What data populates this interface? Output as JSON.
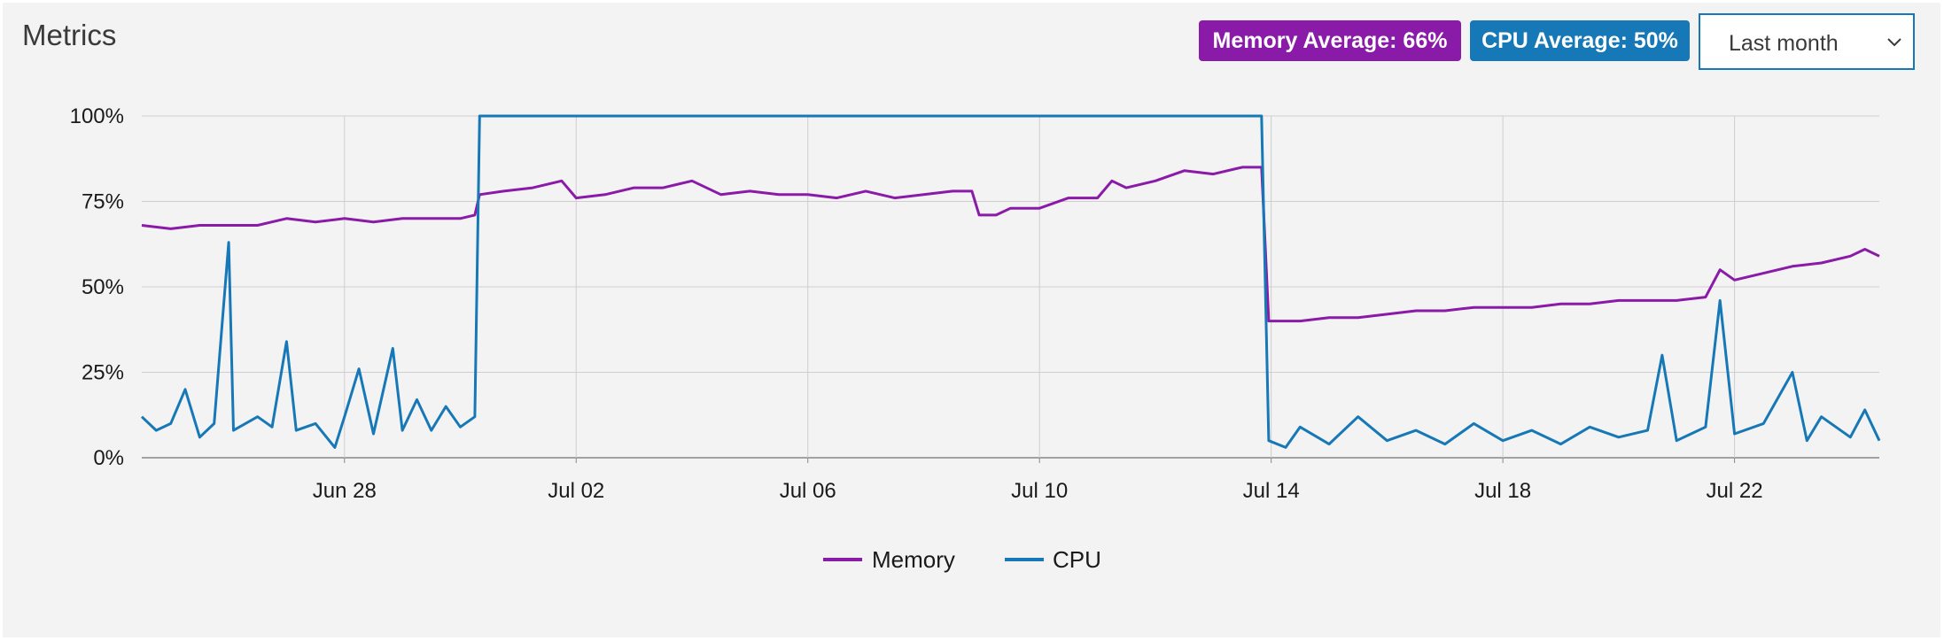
{
  "header": {
    "title": "Metrics",
    "memory_badge": "Memory Average: 66%",
    "cpu_badge": "CPU Average: 50%",
    "range_select": {
      "selected": "Last month"
    }
  },
  "colors": {
    "memory": "#8a1aa8",
    "cpu": "#1678b6",
    "grid": "#cfcdcf",
    "axis": "#888888"
  },
  "icons": {
    "range_chevron": "chevron-down-icon"
  },
  "chart_data": {
    "type": "line",
    "title": "",
    "xlabel": "",
    "ylabel": "",
    "x_range": [
      "2024-06-24T12:00",
      "2024-07-24T12:00"
    ],
    "ylim": [
      0,
      100
    ],
    "y_ticks": [
      0,
      25,
      50,
      75,
      100
    ],
    "y_tick_labels": [
      "0%",
      "25%",
      "50%",
      "75%",
      "100%"
    ],
    "x_ticks": [
      "2024-06-28",
      "2024-07-02",
      "2024-07-06",
      "2024-07-10",
      "2024-07-14",
      "2024-07-18",
      "2024-07-22"
    ],
    "x_tick_labels": [
      "Jun 28",
      "Jul 02",
      "Jul 06",
      "Jul 10",
      "Jul 14",
      "Jul 18",
      "Jul 22"
    ],
    "grid": true,
    "legend": "bottom-center",
    "series": [
      {
        "name": "Memory",
        "points": [
          [
            "2024-06-24T12:00",
            68
          ],
          [
            "2024-06-25T00:00",
            67
          ],
          [
            "2024-06-25T12:00",
            68
          ],
          [
            "2024-06-26T00:00",
            68
          ],
          [
            "2024-06-26T12:00",
            68
          ],
          [
            "2024-06-27T00:00",
            70
          ],
          [
            "2024-06-27T12:00",
            69
          ],
          [
            "2024-06-28T00:00",
            70
          ],
          [
            "2024-06-28T12:00",
            69
          ],
          [
            "2024-06-29T00:00",
            70
          ],
          [
            "2024-06-29T12:00",
            70
          ],
          [
            "2024-06-30T00:00",
            70
          ],
          [
            "2024-06-30T06:00",
            71
          ],
          [
            "2024-06-30T08:00",
            77
          ],
          [
            "2024-06-30T18:00",
            78
          ],
          [
            "2024-07-01T06:00",
            79
          ],
          [
            "2024-07-01T18:00",
            81
          ],
          [
            "2024-07-02T00:00",
            76
          ],
          [
            "2024-07-02T12:00",
            77
          ],
          [
            "2024-07-03T00:00",
            79
          ],
          [
            "2024-07-03T12:00",
            79
          ],
          [
            "2024-07-04T00:00",
            81
          ],
          [
            "2024-07-04T12:00",
            77
          ],
          [
            "2024-07-05T00:00",
            78
          ],
          [
            "2024-07-05T12:00",
            77
          ],
          [
            "2024-07-06T00:00",
            77
          ],
          [
            "2024-07-06T12:00",
            76
          ],
          [
            "2024-07-07T00:00",
            78
          ],
          [
            "2024-07-07T12:00",
            76
          ],
          [
            "2024-07-08T00:00",
            77
          ],
          [
            "2024-07-08T12:00",
            78
          ],
          [
            "2024-07-08T20:00",
            78
          ],
          [
            "2024-07-08T23:00",
            71
          ],
          [
            "2024-07-09T06:00",
            71
          ],
          [
            "2024-07-09T12:00",
            73
          ],
          [
            "2024-07-10T00:00",
            73
          ],
          [
            "2024-07-10T12:00",
            76
          ],
          [
            "2024-07-11T00:00",
            76
          ],
          [
            "2024-07-11T06:00",
            81
          ],
          [
            "2024-07-11T12:00",
            79
          ],
          [
            "2024-07-12T00:00",
            81
          ],
          [
            "2024-07-12T12:00",
            84
          ],
          [
            "2024-07-13T00:00",
            83
          ],
          [
            "2024-07-13T12:00",
            85
          ],
          [
            "2024-07-13T20:00",
            85
          ],
          [
            "2024-07-13T23:00",
            40
          ],
          [
            "2024-07-14T12:00",
            40
          ],
          [
            "2024-07-15T00:00",
            41
          ],
          [
            "2024-07-15T12:00",
            41
          ],
          [
            "2024-07-16T00:00",
            42
          ],
          [
            "2024-07-16T12:00",
            43
          ],
          [
            "2024-07-17T00:00",
            43
          ],
          [
            "2024-07-17T12:00",
            44
          ],
          [
            "2024-07-18T00:00",
            44
          ],
          [
            "2024-07-18T12:00",
            44
          ],
          [
            "2024-07-19T00:00",
            45
          ],
          [
            "2024-07-19T12:00",
            45
          ],
          [
            "2024-07-20T00:00",
            46
          ],
          [
            "2024-07-20T12:00",
            46
          ],
          [
            "2024-07-21T00:00",
            46
          ],
          [
            "2024-07-21T12:00",
            47
          ],
          [
            "2024-07-21T18:00",
            55
          ],
          [
            "2024-07-22T00:00",
            52
          ],
          [
            "2024-07-22T12:00",
            54
          ],
          [
            "2024-07-23T00:00",
            56
          ],
          [
            "2024-07-23T12:00",
            57
          ],
          [
            "2024-07-24T00:00",
            59
          ],
          [
            "2024-07-24T06:00",
            61
          ],
          [
            "2024-07-24T12:00",
            59
          ]
        ]
      },
      {
        "name": "CPU",
        "points": [
          [
            "2024-06-24T12:00",
            12
          ],
          [
            "2024-06-24T18:00",
            8
          ],
          [
            "2024-06-25T00:00",
            10
          ],
          [
            "2024-06-25T06:00",
            20
          ],
          [
            "2024-06-25T12:00",
            6
          ],
          [
            "2024-06-25T18:00",
            10
          ],
          [
            "2024-06-26T00:00",
            63
          ],
          [
            "2024-06-26T02:00",
            8
          ],
          [
            "2024-06-26T12:00",
            12
          ],
          [
            "2024-06-26T18:00",
            9
          ],
          [
            "2024-06-27T00:00",
            34
          ],
          [
            "2024-06-27T04:00",
            8
          ],
          [
            "2024-06-27T12:00",
            10
          ],
          [
            "2024-06-27T20:00",
            3
          ],
          [
            "2024-06-28T00:00",
            12
          ],
          [
            "2024-06-28T06:00",
            26
          ],
          [
            "2024-06-28T12:00",
            7
          ],
          [
            "2024-06-28T20:00",
            32
          ],
          [
            "2024-06-29T00:00",
            8
          ],
          [
            "2024-06-29T06:00",
            17
          ],
          [
            "2024-06-29T12:00",
            8
          ],
          [
            "2024-06-29T18:00",
            15
          ],
          [
            "2024-06-30T00:00",
            9
          ],
          [
            "2024-06-30T06:00",
            12
          ],
          [
            "2024-06-30T08:00",
            100
          ],
          [
            "2024-07-13T20:00",
            100
          ],
          [
            "2024-07-13T23:00",
            5
          ],
          [
            "2024-07-14T06:00",
            3
          ],
          [
            "2024-07-14T12:00",
            9
          ],
          [
            "2024-07-15T00:00",
            4
          ],
          [
            "2024-07-15T12:00",
            12
          ],
          [
            "2024-07-16T00:00",
            5
          ],
          [
            "2024-07-16T12:00",
            8
          ],
          [
            "2024-07-17T00:00",
            4
          ],
          [
            "2024-07-17T12:00",
            10
          ],
          [
            "2024-07-18T00:00",
            5
          ],
          [
            "2024-07-18T12:00",
            8
          ],
          [
            "2024-07-19T00:00",
            4
          ],
          [
            "2024-07-19T12:00",
            9
          ],
          [
            "2024-07-20T00:00",
            6
          ],
          [
            "2024-07-20T12:00",
            8
          ],
          [
            "2024-07-20T18:00",
            30
          ],
          [
            "2024-07-21T00:00",
            5
          ],
          [
            "2024-07-21T12:00",
            9
          ],
          [
            "2024-07-21T18:00",
            46
          ],
          [
            "2024-07-22T00:00",
            7
          ],
          [
            "2024-07-22T12:00",
            10
          ],
          [
            "2024-07-23T00:00",
            25
          ],
          [
            "2024-07-23T06:00",
            5
          ],
          [
            "2024-07-23T12:00",
            12
          ],
          [
            "2024-07-24T00:00",
            6
          ],
          [
            "2024-07-24T06:00",
            14
          ],
          [
            "2024-07-24T12:00",
            5
          ]
        ]
      }
    ]
  }
}
